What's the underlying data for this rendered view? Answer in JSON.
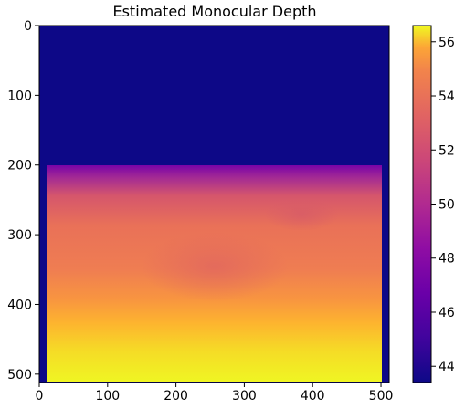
{
  "chart_data": {
    "type": "heatmap",
    "title": "Estimated Monocular Depth",
    "xlabel": "",
    "ylabel": "",
    "colormap": "plasma",
    "xlim": [
      0,
      512
    ],
    "ylim": [
      512,
      0
    ],
    "x_ticks": [
      0,
      100,
      200,
      300,
      400,
      500
    ],
    "y_ticks": [
      0,
      100,
      200,
      300,
      400,
      500
    ],
    "colorbar": {
      "range": [
        43.4,
        56.6
      ],
      "ticks": [
        44,
        46,
        48,
        50,
        52,
        54,
        56
      ]
    },
    "regions": [
      {
        "name": "top band",
        "rows": [
          0,
          200
        ],
        "value": 43.4
      },
      {
        "name": "left border",
        "cols": [
          0,
          10
        ],
        "value": 43.4
      },
      {
        "name": "right border",
        "cols": [
          502,
          512
        ],
        "value": 43.4
      },
      {
        "name": "transition",
        "rows": [
          200,
          230
        ],
        "value_range": [
          46.5,
          49.5
        ]
      },
      {
        "name": "middle",
        "rows": [
          230,
          420
        ],
        "value_range": [
          50.5,
          53.5
        ]
      },
      {
        "name": "bottom",
        "rows": [
          420,
          512
        ],
        "value_range": [
          54.0,
          56.6
        ]
      }
    ],
    "grid": false
  }
}
